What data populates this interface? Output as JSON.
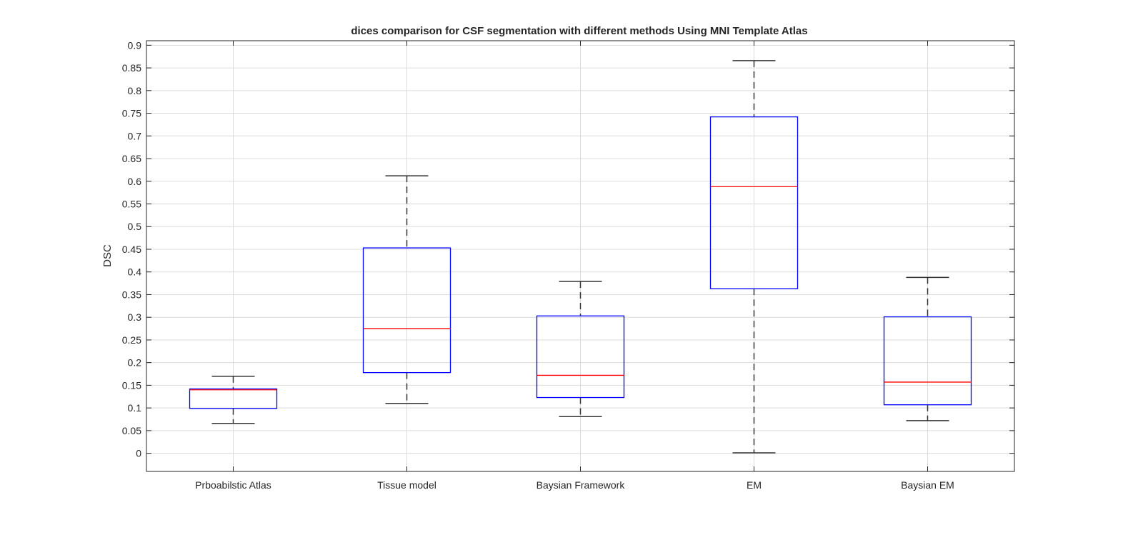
{
  "chart_data": {
    "type": "box",
    "title": "dices comparison for CSF segmentation with different methods Using MNI Template Atlas",
    "xlabel": "",
    "ylabel": "DSC",
    "ylim": [
      -0.04,
      0.91
    ],
    "yticks": [
      "0",
      "0.05",
      "0.1",
      "0.15",
      "0.2",
      "0.25",
      "0.3",
      "0.35",
      "0.4",
      "0.45",
      "0.5",
      "0.55",
      "0.6",
      "0.65",
      "0.7",
      "0.75",
      "0.8",
      "0.85",
      "0.9"
    ],
    "grid": true,
    "colors": {
      "box": "#0000ff",
      "median": "#ff0000",
      "whisker": "#333333",
      "grid": "#dcdcdc",
      "axes": "#262626"
    },
    "categories": [
      "Prboabilstic Atlas",
      "Tissue model",
      "Baysian Framework",
      "EM",
      "Baysian EM"
    ],
    "boxes": [
      {
        "whisker_low": 0.066,
        "q1": 0.099,
        "median": 0.14,
        "q3": 0.142,
        "whisker_high": 0.17
      },
      {
        "whisker_low": 0.11,
        "q1": 0.178,
        "median": 0.275,
        "q3": 0.453,
        "whisker_high": 0.612
      },
      {
        "whisker_low": 0.081,
        "q1": 0.123,
        "median": 0.172,
        "q3": 0.303,
        "whisker_high": 0.379
      },
      {
        "whisker_low": 0.001,
        "q1": 0.363,
        "median": 0.588,
        "q3": 0.742,
        "whisker_high": 0.866
      },
      {
        "whisker_low": 0.072,
        "q1": 0.107,
        "median": 0.157,
        "q3": 0.301,
        "whisker_high": 0.388
      }
    ]
  }
}
